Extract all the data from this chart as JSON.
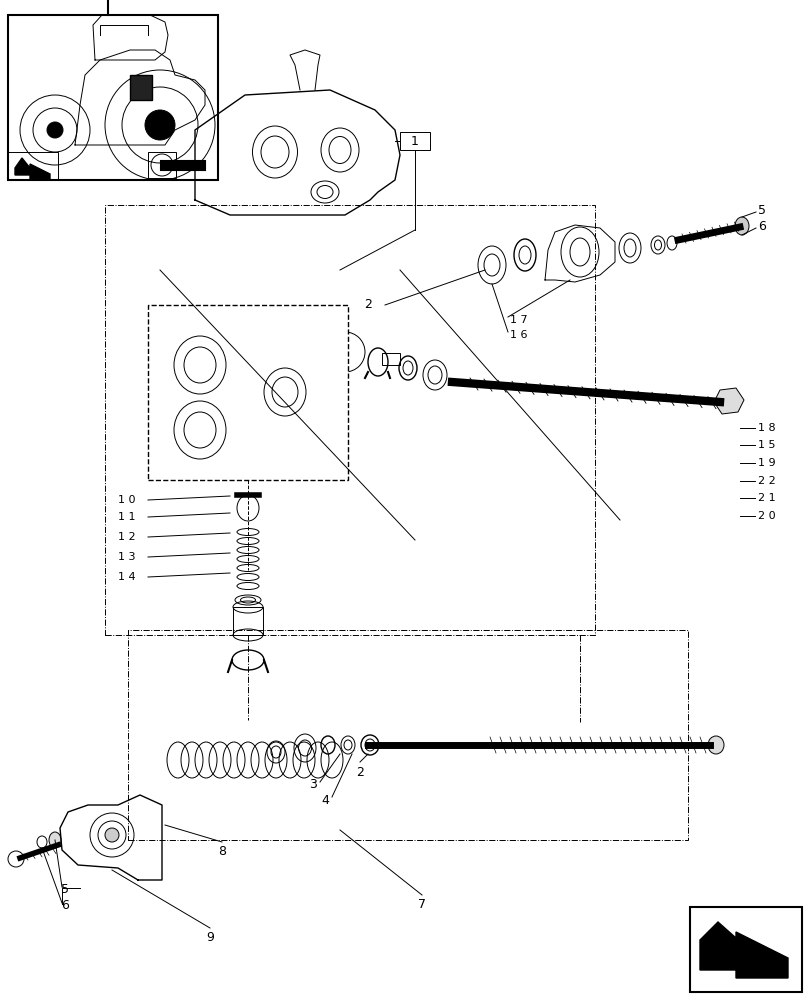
{
  "bg_color": "#ffffff",
  "line_color": "#000000",
  "label_color": "#000000",
  "fig_width": 8.12,
  "fig_height": 10.0,
  "dpi": 100
}
